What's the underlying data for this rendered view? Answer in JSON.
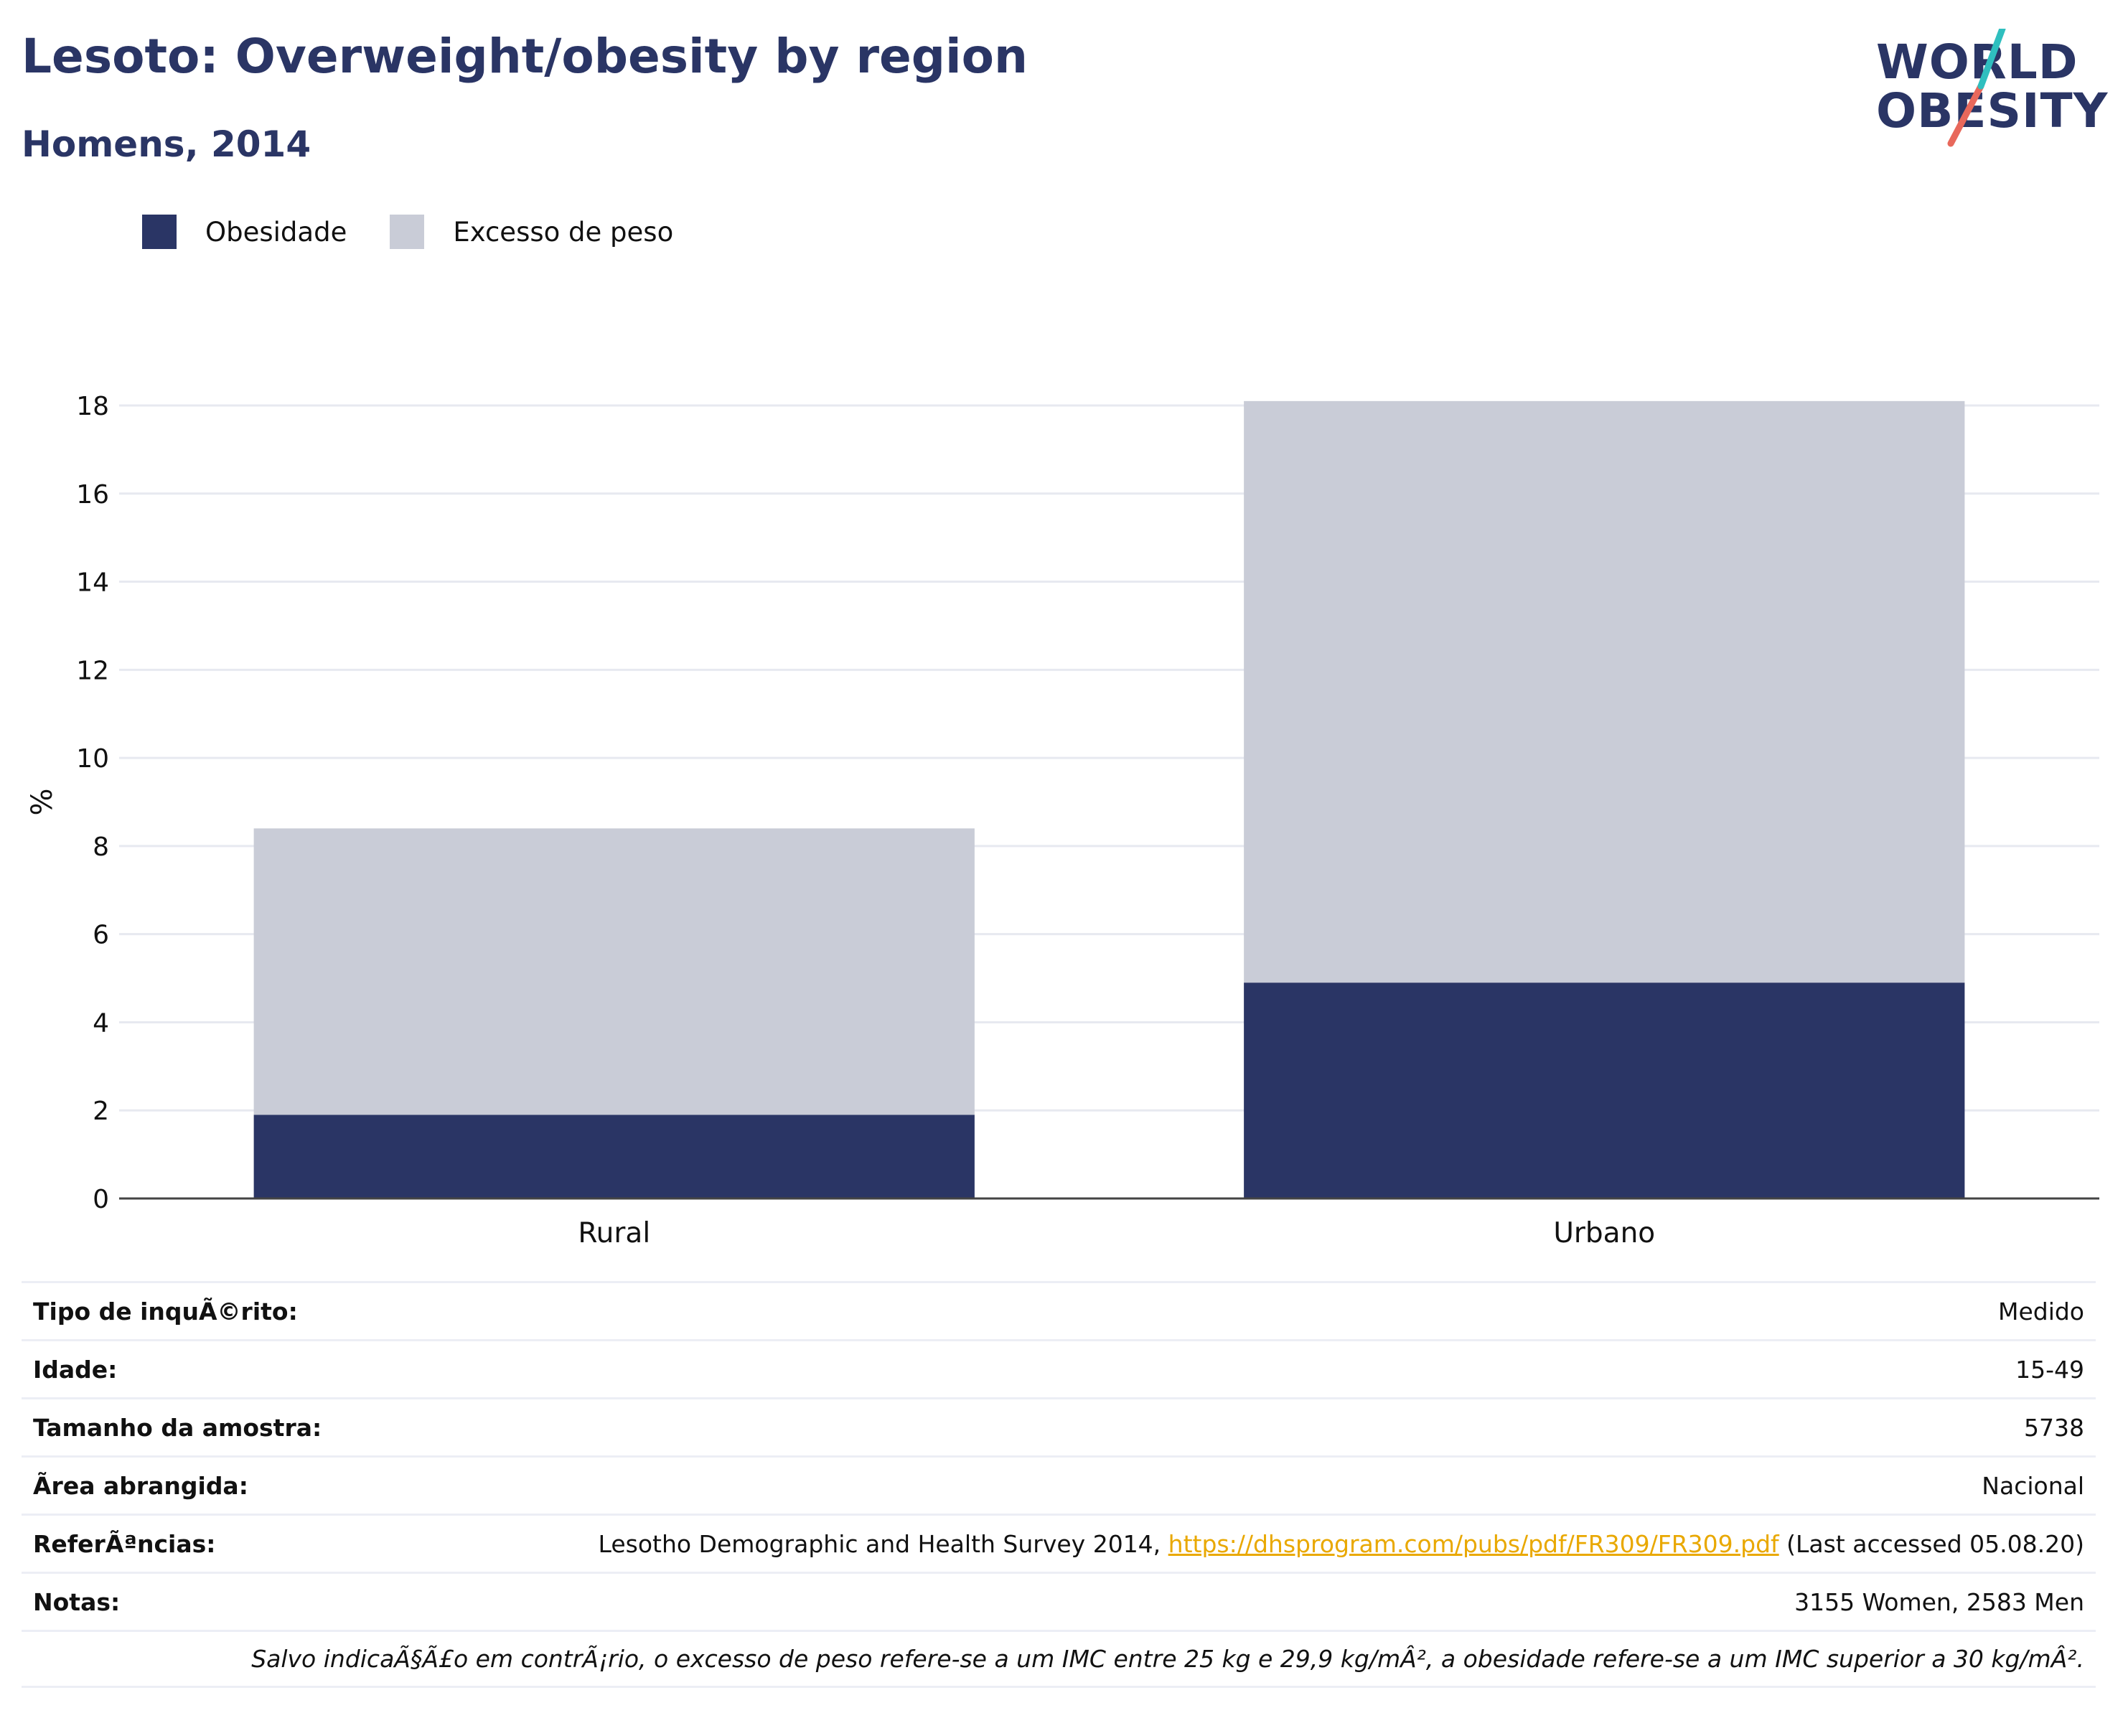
{
  "header": {
    "title": "Lesoto: Overweight/obesity by region",
    "subtitle": "Homens, 2014"
  },
  "logo": {
    "line1": "WORLD",
    "line2": "OBESITY",
    "colors": {
      "text": "#2a3565",
      "slash_top": "#2fbfbf",
      "slash_bottom": "#e8685b"
    }
  },
  "legend": [
    {
      "label": "Obesidade",
      "color": "#2a3565"
    },
    {
      "label": "Excesso de peso",
      "color": "#c9ccd7"
    }
  ],
  "chart_data": {
    "type": "bar",
    "stacked": true,
    "categories": [
      "Rural",
      "Urbano"
    ],
    "series": [
      {
        "name": "Obesidade",
        "values": [
          1.9,
          4.9
        ],
        "color": "#2a3565"
      },
      {
        "name": "Excesso de peso",
        "values": [
          6.5,
          13.2
        ],
        "color": "#c9ccd7"
      }
    ],
    "ylabel": "%",
    "xlabel": "",
    "ylim": [
      0,
      18
    ],
    "yticks": [
      0,
      2,
      4,
      6,
      8,
      10,
      12,
      14,
      16,
      18
    ],
    "grid": true,
    "legend_position": "top-left"
  },
  "info": {
    "rows": [
      {
        "key": "Tipo de inquÃ©rito:",
        "value": "Medido"
      },
      {
        "key": "Idade:",
        "value": "15-49"
      },
      {
        "key": "Tamanho da amostra:",
        "value": "5738"
      },
      {
        "key": "Ã\u001frea abrangida:",
        "value": "Nacional"
      }
    ],
    "references": {
      "key": "ReferÃªncias:",
      "text_before": "Lesotho Demographic and Health Survey 2014, ",
      "link": "https://dhsprogram.com/pubs/pdf/FR309/FR309.pdf",
      "text_after": " (Last accessed 05.08.20)"
    },
    "notes": {
      "key": "Notas:",
      "value": "3155 Women, 2583 Men"
    },
    "footnote": "Salvo indicaÃ§Ã£o em contrÃ¡rio, o excesso de peso refere-se a um IMC entre 25 kg e 29,9 kg/mÂ², a obesidade refere-se a um IMC superior a 30 kg/mÂ²."
  }
}
